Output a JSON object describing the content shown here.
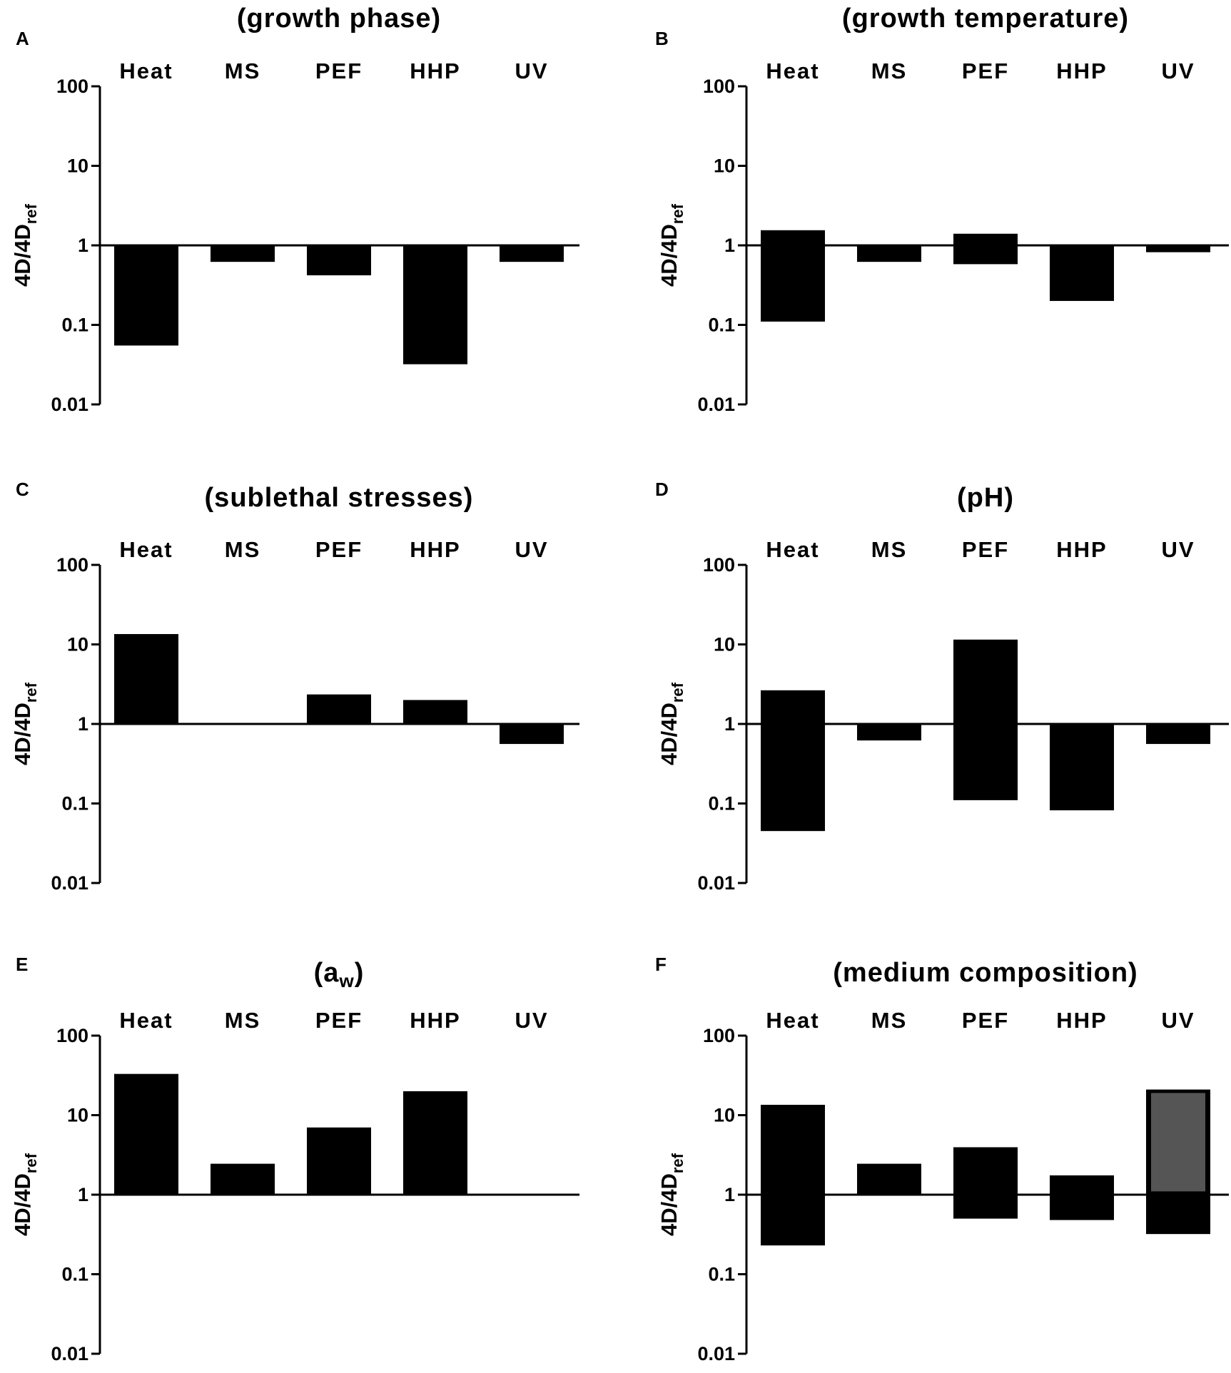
{
  "chart_data": [
    {
      "type": "bar",
      "panel": "A",
      "title": "(growth phase)",
      "categories": [
        "Heat",
        "MS",
        "PEF",
        "HHP",
        "UV"
      ],
      "ylabel_main": "4D/4D",
      "ylabel_sub": "ref",
      "yscale": "log",
      "ylim": [
        0.01,
        100
      ],
      "yticks": [
        "0.01",
        "0.1",
        "1",
        "10",
        "100"
      ],
      "baseline": 1,
      "bars": [
        {
          "category": "Heat",
          "low": 0.055,
          "high": 1
        },
        {
          "category": "MS",
          "low": 0.62,
          "high": 1
        },
        {
          "category": "PEF",
          "low": 0.42,
          "high": 1
        },
        {
          "category": "HHP",
          "low": 0.032,
          "high": 1
        },
        {
          "category": "UV",
          "low": 0.62,
          "high": 1
        }
      ]
    },
    {
      "type": "bar",
      "panel": "B",
      "title": "(growth temperature)",
      "categories": [
        "Heat",
        "MS",
        "PEF",
        "HHP",
        "UV"
      ],
      "ylabel_main": "4D/4D",
      "ylabel_sub": "ref",
      "yscale": "log",
      "ylim": [
        0.01,
        100
      ],
      "yticks": [
        "0.01",
        "0.1",
        "1",
        "10",
        "100"
      ],
      "baseline": 1,
      "bars": [
        {
          "category": "Heat",
          "low": 0.11,
          "high": 1.55
        },
        {
          "category": "MS",
          "low": 0.62,
          "high": 1
        },
        {
          "category": "PEF",
          "low": 0.58,
          "high": 1.4
        },
        {
          "category": "HHP",
          "low": 0.2,
          "high": 1
        },
        {
          "category": "UV",
          "low": 0.82,
          "high": 1
        }
      ]
    },
    {
      "type": "bar",
      "panel": "C",
      "title": "(sublethal stresses)",
      "categories": [
        "Heat",
        "MS",
        "PEF",
        "HHP",
        "UV"
      ],
      "ylabel_main": "4D/4D",
      "ylabel_sub": "ref",
      "yscale": "log",
      "ylim": [
        0.01,
        100
      ],
      "yticks": [
        "0.01",
        "0.1",
        "1",
        "10",
        "100"
      ],
      "baseline": 1,
      "bars": [
        {
          "category": "Heat",
          "low": 1,
          "high": 13.5
        },
        {
          "category": "PEF",
          "low": 1,
          "high": 2.35
        },
        {
          "category": "HHP",
          "low": 1,
          "high": 2.0
        },
        {
          "category": "UV",
          "low": 0.56,
          "high": 1
        }
      ]
    },
    {
      "type": "bar",
      "panel": "D",
      "title": "(pH)",
      "categories": [
        "Heat",
        "MS",
        "PEF",
        "HHP",
        "UV"
      ],
      "ylabel_main": "4D/4D",
      "ylabel_sub": "ref",
      "yscale": "log",
      "ylim": [
        0.01,
        100
      ],
      "yticks": [
        "0.01",
        "0.1",
        "1",
        "10",
        "100"
      ],
      "baseline": 1,
      "bars": [
        {
          "category": "Heat",
          "low": 0.045,
          "high": 2.65
        },
        {
          "category": "MS",
          "low": 0.62,
          "high": 1
        },
        {
          "category": "PEF",
          "low": 0.11,
          "high": 11.5
        },
        {
          "category": "HHP",
          "low": 0.082,
          "high": 1
        },
        {
          "category": "UV",
          "low": 0.56,
          "high": 1
        }
      ]
    },
    {
      "type": "bar",
      "panel": "E",
      "title_main": "(a",
      "title_sub": "w",
      "title_end": ")",
      "categories": [
        "Heat",
        "MS",
        "PEF",
        "HHP",
        "UV"
      ],
      "ylabel_main": "4D/4D",
      "ylabel_sub": "ref",
      "yscale": "log",
      "ylim": [
        0.01,
        100
      ],
      "yticks": [
        "0.01",
        "0.1",
        "1",
        "10",
        "100"
      ],
      "baseline": 1,
      "bars": [
        {
          "category": "Heat",
          "low": 1,
          "high": 33
        },
        {
          "category": "MS",
          "low": 1,
          "high": 2.45
        },
        {
          "category": "PEF",
          "low": 1,
          "high": 7.0
        },
        {
          "category": "HHP",
          "low": 1,
          "high": 20
        }
      ]
    },
    {
      "type": "bar",
      "panel": "F",
      "title": "(medium composition)",
      "categories": [
        "Heat",
        "MS",
        "PEF",
        "HHP",
        "UV"
      ],
      "ylabel_main": "4D/4D",
      "ylabel_sub": "ref",
      "yscale": "log",
      "ylim": [
        0.01,
        100
      ],
      "yticks": [
        "0.01",
        "0.1",
        "1",
        "10",
        "100"
      ],
      "baseline": 1,
      "bars": [
        {
          "category": "Heat",
          "low": 0.23,
          "high": 13.5
        },
        {
          "category": "MS",
          "low": 1,
          "high": 2.45
        },
        {
          "category": "PEF",
          "low": 0.5,
          "high": 3.95
        },
        {
          "category": "HHP",
          "low": 0.48,
          "high": 1.75
        },
        {
          "category": "UV",
          "low": 0.32,
          "high": 21,
          "inner_low": 1.1,
          "inner_high": 19
        }
      ]
    }
  ],
  "colors": {
    "bar": "#000000",
    "bar_inner": "#555555",
    "axis": "#000000",
    "background": "#ffffff"
  }
}
